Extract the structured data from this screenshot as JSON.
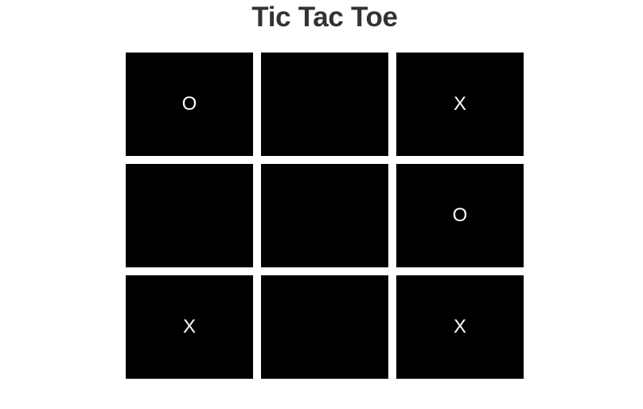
{
  "title": "Tic Tac Toe",
  "board": {
    "cells": [
      "O",
      "",
      "X",
      "",
      "",
      "O",
      "X",
      "",
      "X"
    ]
  },
  "colors": {
    "cell_background": "#000000",
    "mark": "#ffffff",
    "title": "#333333",
    "page_background": "#ffffff"
  }
}
